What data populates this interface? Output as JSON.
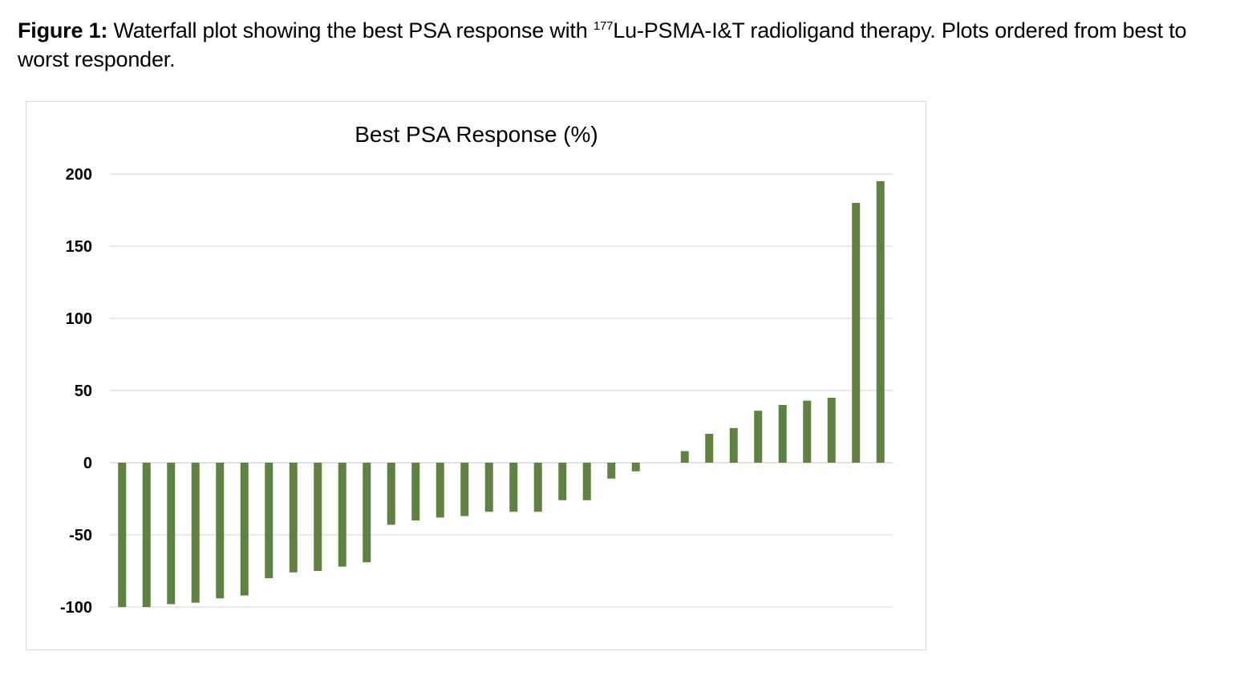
{
  "caption": {
    "label": "Figure 1:",
    "text_before_sup": " Waterfall plot showing the best PSA response with ",
    "sup": "177",
    "text_after_sup": "Lu-PSMA-I&T radioligand therapy. Plots ordered from best to worst responder."
  },
  "chart_data": {
    "type": "bar",
    "title": "Best PSA Response (%)",
    "xlabel": "",
    "ylabel": "",
    "ylim": [
      -100,
      200
    ],
    "yticks": [
      200,
      150,
      100,
      50,
      0,
      -50,
      -100
    ],
    "grid": true,
    "legend": "none",
    "bar_color": "#5f8142",
    "values": [
      -100,
      -100,
      -98,
      -97,
      -94,
      -92,
      -80,
      -76,
      -75,
      -72,
      -69,
      -43,
      -40,
      -38,
      -37,
      -34,
      -34,
      -34,
      -26,
      -26,
      -11,
      -6,
      0,
      8,
      20,
      24,
      36,
      40,
      43,
      45,
      180,
      195
    ]
  }
}
